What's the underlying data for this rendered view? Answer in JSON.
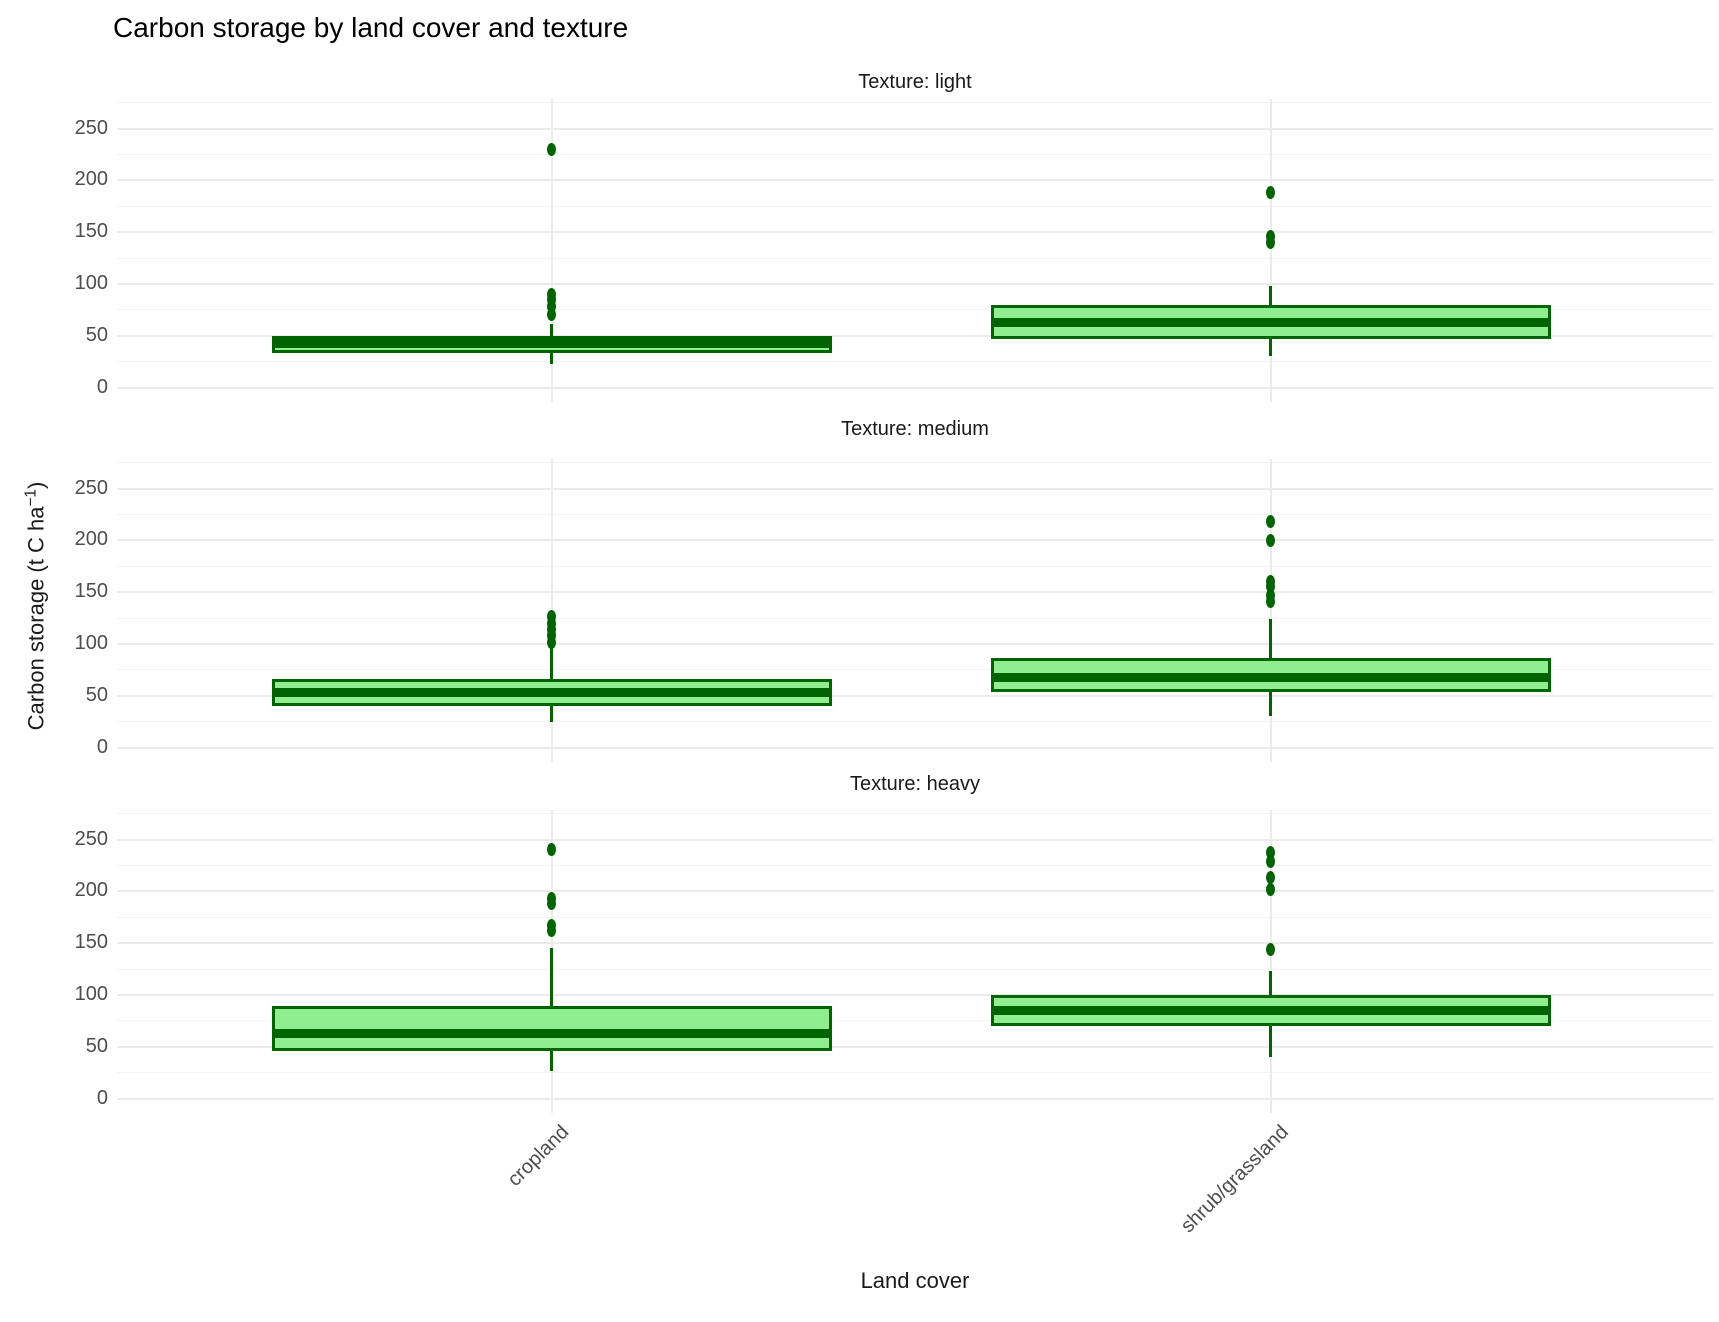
{
  "title": "Carbon storage by land cover and texture",
  "axes": {
    "x_title": "Land cover",
    "y_title_main": "Carbon storage (t C ha",
    "y_title_sup": "−1",
    "y_title_close": ")"
  },
  "chart_data": {
    "type": "boxplot",
    "title": "Carbon storage by land cover and texture",
    "xlabel": "Land cover",
    "ylabel": "Carbon storage (t C ha^-1)",
    "categories": [
      "cropland",
      "shrub/grassland"
    ],
    "y_ticks": [
      0,
      50,
      100,
      150,
      200,
      250
    ],
    "y_minor_ticks": [
      25,
      75,
      125,
      175,
      225,
      275
    ],
    "ylim": [
      -14,
      278
    ],
    "grid": "major+minor horizontal, category verticals",
    "legend": "none",
    "facets": [
      {
        "label": "Texture: light",
        "boxes": [
          {
            "category": "cropland",
            "whisker_low": 23,
            "q1": 33,
            "median": 42,
            "q3": 50,
            "whisker_high": 61,
            "outliers": [
              230,
              90,
              85,
              78,
              70
            ]
          },
          {
            "category": "shrub/grassland",
            "whisker_low": 30,
            "q1": 47,
            "median": 63,
            "q3": 80,
            "whisker_high": 98,
            "outliers": [
              188,
              146,
              140
            ]
          }
        ]
      },
      {
        "label": "Texture: medium",
        "boxes": [
          {
            "category": "cropland",
            "whisker_low": 25,
            "q1": 40,
            "median": 53,
            "q3": 66,
            "whisker_high": 97,
            "outliers": [
              126,
              120,
              114,
              108,
              101
            ]
          },
          {
            "category": "shrub/grassland",
            "whisker_low": 30,
            "q1": 54,
            "median": 68,
            "q3": 86,
            "whisker_high": 124,
            "outliers": [
              218,
              200,
              160,
              155,
              147,
              141
            ]
          }
        ]
      },
      {
        "label": "Texture: heavy",
        "boxes": [
          {
            "category": "cropland",
            "whisker_low": 27,
            "q1": 46,
            "median": 63,
            "q3": 89,
            "whisker_high": 145,
            "outliers": [
              240,
              193,
              188,
              167,
              162
            ]
          },
          {
            "category": "shrub/grassland",
            "whisker_low": 40,
            "q1": 70,
            "median": 85,
            "q3": 100,
            "whisker_high": 123,
            "outliers": [
              237,
              229,
              213,
              202,
              144
            ]
          }
        ]
      }
    ],
    "colors": {
      "box_fill": "#90EE90",
      "box_stroke": "#006400",
      "grid_major": "#EBEBEB",
      "grid_minor": "#F4F4F4",
      "axis_text": "#4D4D4D",
      "strip_text": "#1A1A1A",
      "title_text": "#000000"
    }
  }
}
